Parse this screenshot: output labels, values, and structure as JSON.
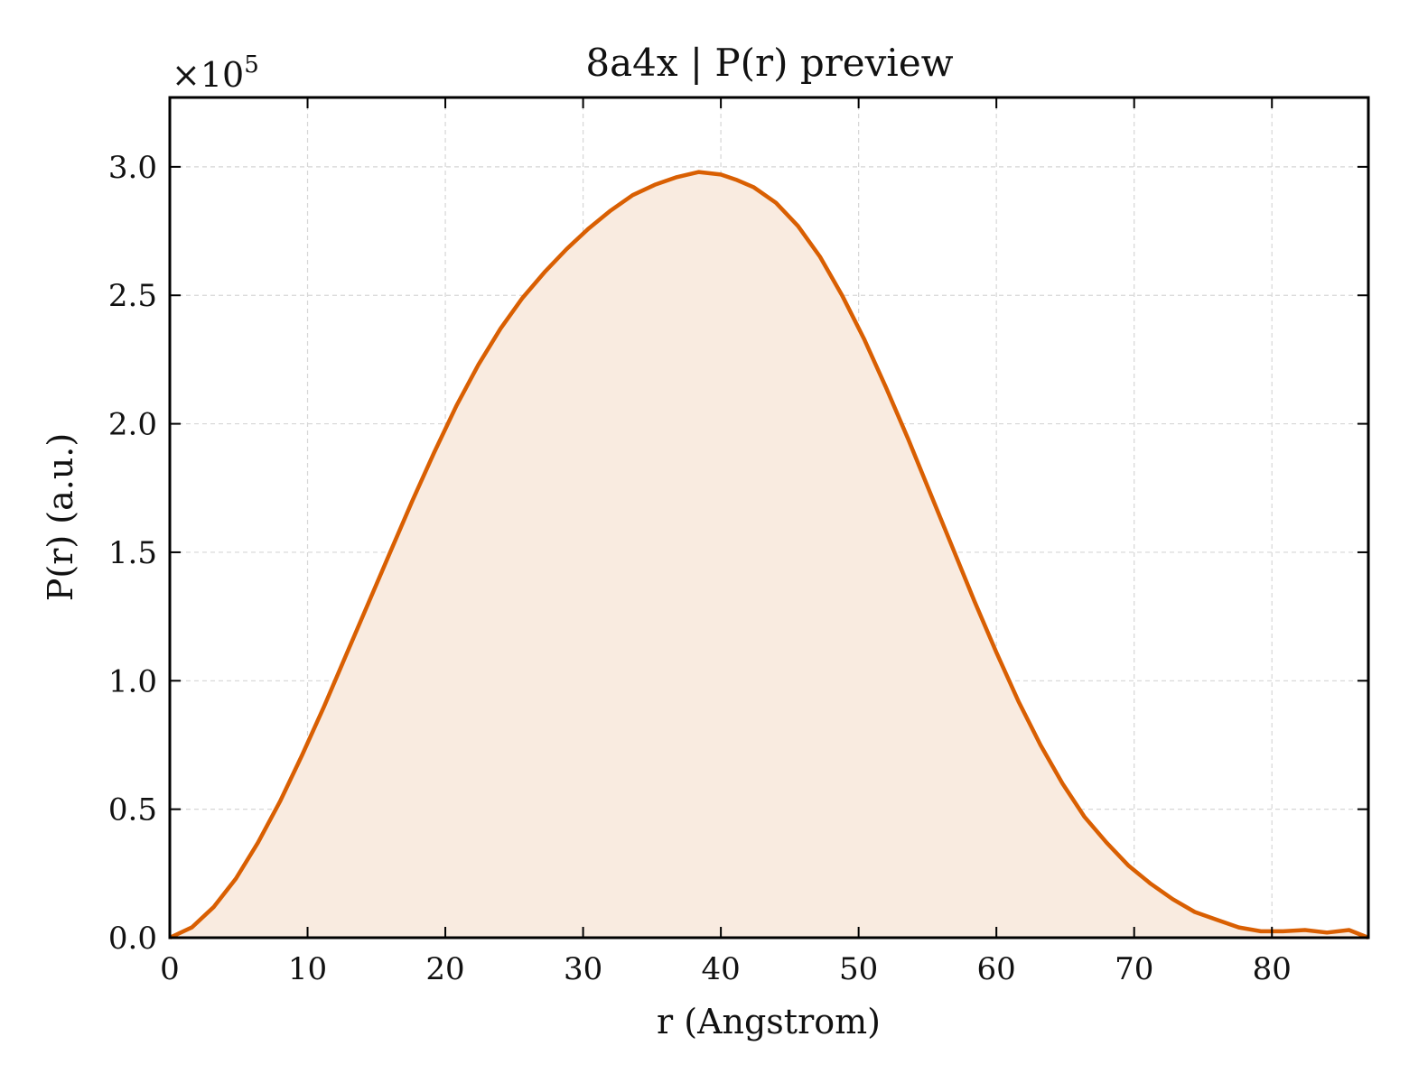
{
  "chart_data": {
    "type": "area",
    "title": "8a4x | P(r) preview",
    "xlabel": "r (Angstrom)",
    "ylabel": "P(r) (a.u.)",
    "y_scale_label": "×10",
    "y_scale_exponent": "5",
    "xlim": [
      0,
      87
    ],
    "ylim": [
      0,
      3.27
    ],
    "xticks": [
      0,
      10,
      20,
      30,
      40,
      50,
      60,
      70,
      80
    ],
    "xtick_labels": [
      "0",
      "10",
      "20",
      "30",
      "40",
      "50",
      "60",
      "70",
      "80"
    ],
    "yticks": [
      0,
      0.5,
      1.0,
      1.5,
      2.0,
      2.5,
      3.0
    ],
    "ytick_labels": [
      "0.0",
      "0.5",
      "1.0",
      "1.5",
      "2.0",
      "2.5",
      "3.0"
    ],
    "grid": true,
    "line_color": "#d95f02",
    "fill_color": "#f9ebe0",
    "series": [
      {
        "x": [
          0,
          1.6,
          3.2,
          4.8,
          6.4,
          8.0,
          9.6,
          11.2,
          12.8,
          14.4,
          16.0,
          17.6,
          19.2,
          20.8,
          22.4,
          24.0,
          25.6,
          27.2,
          28.8,
          30.4,
          32.0,
          33.6,
          35.2,
          36.8,
          38.4,
          40.0,
          41.1,
          42.4,
          44.0,
          45.6,
          47.2,
          48.8,
          50.4,
          52.0,
          53.6,
          55.2,
          56.8,
          58.4,
          60.0,
          61.6,
          63.2,
          64.8,
          66.4,
          68.0,
          69.6,
          71.2,
          72.8,
          74.4,
          76.0,
          77.6,
          79.2,
          80.8,
          82.4,
          84.0,
          85.6,
          87.0
        ],
        "y": [
          0.0,
          0.04,
          0.12,
          0.23,
          0.37,
          0.53,
          0.71,
          0.9,
          1.1,
          1.3,
          1.5,
          1.7,
          1.89,
          2.07,
          2.23,
          2.37,
          2.49,
          2.59,
          2.68,
          2.76,
          2.83,
          2.89,
          2.93,
          2.96,
          2.98,
          2.97,
          2.95,
          2.92,
          2.86,
          2.77,
          2.65,
          2.5,
          2.33,
          2.14,
          1.94,
          1.73,
          1.52,
          1.31,
          1.11,
          0.92,
          0.75,
          0.6,
          0.47,
          0.37,
          0.28,
          0.21,
          0.15,
          0.1,
          0.07,
          0.04,
          0.025,
          0.025,
          0.03,
          0.02,
          0.03,
          0.0
        ]
      }
    ]
  }
}
